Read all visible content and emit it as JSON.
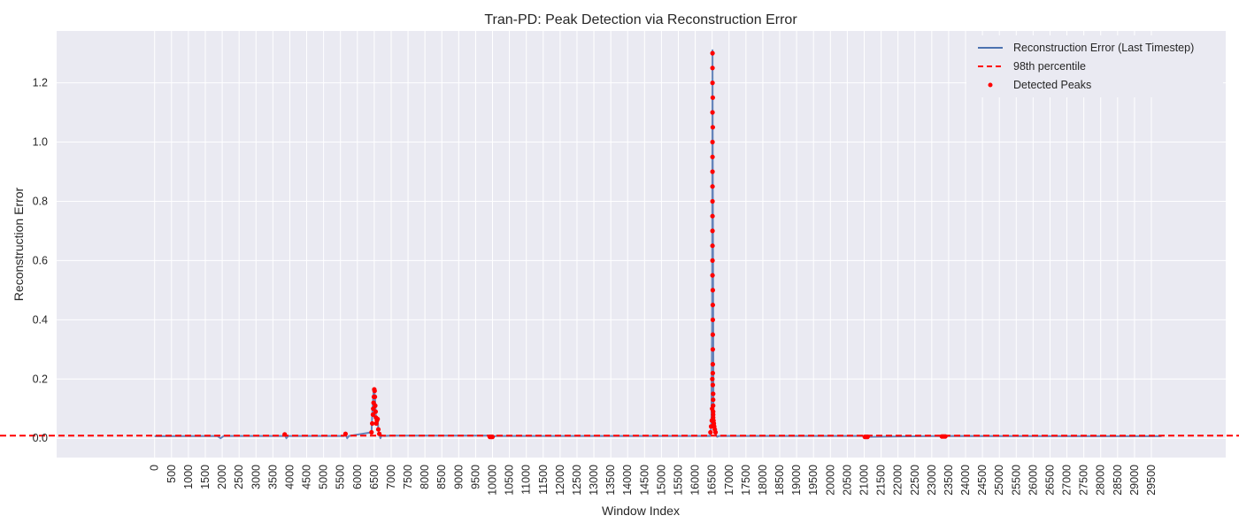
{
  "chart_data": {
    "type": "line",
    "title": "Tran-PD: Peak Detection via Reconstruction Error",
    "xlabel": "Window Index",
    "ylabel": "Reconstruction Error",
    "xlim": [
      -2900,
      31700
    ],
    "ylim": [
      -0.065,
      1.375
    ],
    "x_ticks": [
      0,
      500,
      1000,
      1500,
      2000,
      2500,
      3000,
      3500,
      4000,
      4500,
      5000,
      5500,
      6000,
      6500,
      7000,
      7500,
      8000,
      8500,
      9000,
      9500,
      10000,
      10500,
      11000,
      11500,
      12000,
      12500,
      13000,
      13500,
      14000,
      14500,
      15000,
      15500,
      16000,
      16500,
      17000,
      17500,
      18000,
      18500,
      19000,
      19500,
      20000,
      20500,
      21000,
      21500,
      22000,
      22500,
      23000,
      23500,
      24000,
      24500,
      25000,
      25500,
      26000,
      26500,
      27000,
      27500,
      28000,
      28500,
      29000,
      29500
    ],
    "y_ticks": [
      0.0,
      0.2,
      0.4,
      0.6,
      0.8,
      1.0,
      1.2
    ],
    "y_tick_labels": [
      "0.0",
      "0.2",
      "0.4",
      "0.6",
      "0.8",
      "1.0",
      "1.2"
    ],
    "grid": true,
    "background": "#eaeaf2",
    "legend_position": "top-right",
    "threshold": {
      "name": "98th percentile",
      "value": 0.009,
      "color": "#ff0000"
    },
    "series": [
      {
        "name": "Reconstruction Error (Last Timestep)",
        "color": "#4c72b0",
        "x": [
          0,
          1850,
          1950,
          2050,
          3800,
          3850,
          3900,
          3950,
          5600,
          5650,
          5700,
          5750,
          6420,
          6440,
          6460,
          6480,
          6500,
          6520,
          6540,
          6560,
          6580,
          6600,
          6620,
          6650,
          6680,
          6720,
          6780,
          7000,
          9900,
          10000,
          10100,
          16440,
          16460,
          16480,
          16500,
          16510,
          16520,
          16530,
          16540,
          16550,
          16560,
          16580,
          16600,
          16620,
          16650,
          16700,
          16800,
          21000,
          21100,
          23300,
          23400,
          23500,
          29800
        ],
        "y": [
          0.007,
          0.008,
          0.0,
          0.008,
          0.008,
          0.013,
          0.0,
          0.008,
          0.008,
          0.015,
          0.0,
          0.008,
          0.02,
          0.08,
          0.12,
          0.155,
          0.168,
          0.14,
          0.09,
          0.05,
          0.06,
          0.065,
          0.03,
          0.015,
          0.0,
          0.01,
          0.008,
          0.009,
          0.009,
          0.005,
          0.008,
          0.008,
          0.02,
          0.06,
          0.4,
          1.31,
          0.9,
          0.5,
          0.08,
          0.06,
          0.04,
          0.03,
          0.02,
          0.01,
          0.005,
          0.008,
          0.008,
          0.008,
          0.005,
          0.008,
          0.006,
          0.008,
          0.007
        ]
      },
      {
        "name": "Detected Peaks",
        "color": "#ff0000",
        "x": [
          3850,
          5650,
          6420,
          6440,
          6460,
          6470,
          6480,
          6490,
          6500,
          6510,
          6520,
          6530,
          6540,
          6550,
          6560,
          6580,
          6600,
          6620,
          6650,
          9920,
          9960,
          10000,
          16450,
          16470,
          16490,
          16500,
          16505,
          16510,
          16510,
          16510,
          16510,
          16510,
          16510,
          16510,
          16510,
          16510,
          16510,
          16510,
          16510,
          16510,
          16510,
          16520,
          16520,
          16520,
          16520,
          16520,
          16520,
          16520,
          16520,
          16520,
          16520,
          16530,
          16530,
          16530,
          16530,
          16530,
          16530,
          16540,
          16550,
          16560,
          16580,
          16600,
          21020,
          21060,
          21100,
          23300,
          23350,
          23400
        ],
        "y": [
          0.013,
          0.015,
          0.02,
          0.05,
          0.08,
          0.1,
          0.12,
          0.14,
          0.165,
          0.16,
          0.14,
          0.11,
          0.09,
          0.07,
          0.05,
          0.06,
          0.065,
          0.03,
          0.015,
          0.005,
          0.005,
          0.005,
          0.02,
          0.04,
          0.06,
          0.1,
          0.2,
          1.3,
          1.25,
          1.2,
          1.1,
          1.0,
          0.95,
          0.9,
          0.85,
          0.8,
          0.75,
          0.7,
          0.65,
          0.6,
          0.55,
          1.15,
          1.05,
          0.5,
          0.45,
          0.4,
          0.35,
          0.3,
          0.25,
          0.22,
          0.18,
          0.15,
          0.13,
          0.11,
          0.09,
          0.08,
          0.07,
          0.06,
          0.05,
          0.04,
          0.03,
          0.02,
          0.005,
          0.005,
          0.005,
          0.006,
          0.006,
          0.006
        ]
      }
    ]
  }
}
